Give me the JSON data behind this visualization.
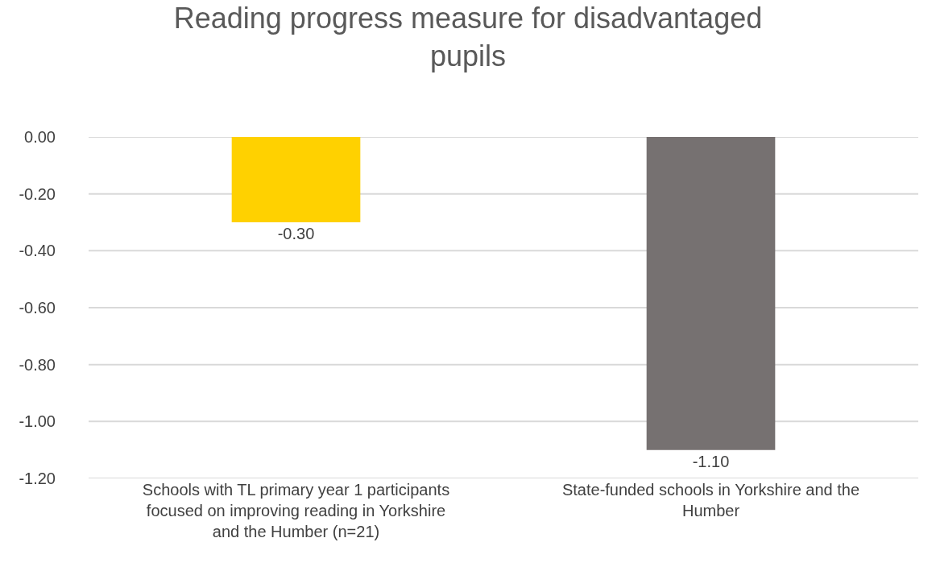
{
  "chart_data": {
    "type": "bar",
    "title": "Reading progress measure for disadvantaged pupils",
    "categories": [
      "Schools with TL primary year 1 participants focused on improving reading in Yorkshire and the Humber (n=21)",
      "State-funded schools in Yorkshire and the Humber"
    ],
    "values": [
      -0.3,
      -1.1
    ],
    "colors": [
      "#ffd100",
      "#767171"
    ],
    "value_labels": [
      "-0.30",
      "-1.10"
    ],
    "ylim": [
      -1.2,
      0
    ],
    "yticks": [
      {
        "value": 0,
        "label": "0.00"
      },
      {
        "value": -0.2,
        "label": "-0.20"
      },
      {
        "value": -0.4,
        "label": "-0.40"
      },
      {
        "value": -0.6,
        "label": "-0.60"
      },
      {
        "value": -0.8,
        "label": "-0.80"
      },
      {
        "value": -1.0,
        "label": "-1.00"
      },
      {
        "value": -1.2,
        "label": "-1.20"
      }
    ],
    "grid": "y"
  }
}
